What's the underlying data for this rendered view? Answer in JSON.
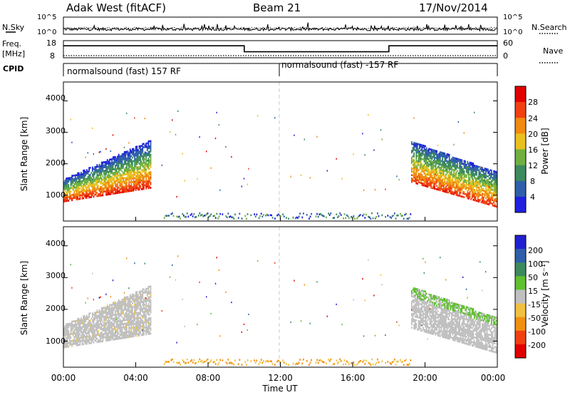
{
  "header": {
    "site": "Adak West (fitACF)",
    "beam": "Beam 21",
    "date": "17/Nov/2014"
  },
  "noise_panel": {
    "left_label": "N.Sky",
    "right_label": "N.Search",
    "left_ticks": [
      "10^5",
      "10^0"
    ],
    "right_ticks": [
      "10^5",
      "10^0"
    ]
  },
  "freq_panel": {
    "left_label_1": "Freq.",
    "left_label_2": "[MHz]",
    "right_label": "Nave",
    "left_ticks": [
      "18",
      "8"
    ],
    "right_ticks": [
      "60",
      "0"
    ]
  },
  "cpid_panel": {
    "label": "CPID",
    "segments": [
      "normalsound (fast) 157 RF",
      "normalsound (fast) -157 RF"
    ]
  },
  "power_panel": {
    "ylabel": "Slant Range [km]",
    "yticks": [
      "4000",
      "3000",
      "2000",
      "1000"
    ],
    "colorbar_label": "Power [dB]",
    "colorbar_ticks": [
      "28",
      "24",
      "20",
      "16",
      "12",
      "8",
      "4"
    ]
  },
  "velocity_panel": {
    "ylabel": "Slant Range [km]",
    "yticks": [
      "4000",
      "3000",
      "2000",
      "1000"
    ],
    "colorbar_label": "Velocity [m s⁻¹]",
    "colorbar_ticks": [
      "200",
      "100",
      "50",
      "15",
      "-15",
      "-50",
      "-100",
      "-200"
    ]
  },
  "x_axis": {
    "ticks": [
      "00:00",
      "04:00",
      "08:00",
      "12:00",
      "16:00",
      "20:00",
      "00:00"
    ],
    "label": "Time UT"
  },
  "colors": {
    "power_scale": [
      "#2020e0",
      "#2f5faa",
      "#3d8a5e",
      "#6fb040",
      "#e8c020",
      "#f08a10",
      "#f04010",
      "#e00000"
    ],
    "velocity_scale": [
      "#e00000",
      "#f04010",
      "#f09010",
      "#f0c040",
      "#c0c0c0",
      "#60c030",
      "#3d8a5e",
      "#2f5faa",
      "#2020d0"
    ]
  },
  "chart_data": [
    {
      "type": "line",
      "title": "N.Sky / N.Search",
      "x": [
        0,
        4,
        8,
        12,
        16,
        20,
        24
      ],
      "series": [
        {
          "name": "N.Sky",
          "values": [
            10,
            10,
            10,
            10,
            10,
            10,
            10
          ]
        }
      ],
      "xlim": [
        0,
        24
      ],
      "ylim": [
        0,
        100000
      ],
      "yscale": "log"
    },
    {
      "type": "line",
      "title": "Freq. [MHz] / Nave",
      "x": [
        0,
        10,
        10,
        18,
        18,
        24
      ],
      "series": [
        {
          "name": "Freq.",
          "values": [
            15,
            15,
            11.5,
            11.5,
            15,
            15
          ]
        },
        {
          "name": "Nave",
          "values": [
            4,
            4,
            4,
            4,
            4,
            4
          ]
        }
      ],
      "xlim": [
        0,
        24
      ],
      "ylim": [
        8,
        18
      ]
    },
    {
      "type": "heatmap",
      "title": "Power [dB]",
      "xlabel": "Time UT",
      "ylabel": "Slant Range [km]",
      "xlim": [
        0,
        24
      ],
      "ylim": [
        180,
        4600
      ],
      "features": [
        {
          "name": "dawn echo band",
          "t_start": 0,
          "t_end": 4.8,
          "range_min": 800,
          "range_max": 2600,
          "peak_power_dB": 30
        },
        {
          "name": "dusk echo band",
          "t_start": 19.2,
          "t_end": 24,
          "range_min": 600,
          "range_max": 2800,
          "peak_power_dB": 30
        },
        {
          "name": "near-range ground scatter",
          "t_start": 6,
          "t_end": 19,
          "range_min": 200,
          "range_max": 400,
          "peak_power_dB": 12
        }
      ]
    },
    {
      "type": "heatmap",
      "title": "Velocity [m s⁻¹]",
      "xlabel": "Time UT",
      "ylabel": "Slant Range [km]",
      "xlim": [
        0,
        24
      ],
      "ylim": [
        180,
        4600
      ],
      "features": [
        {
          "name": "dawn ground scatter",
          "t_start": 0,
          "t_end": 4.8,
          "range_min": 800,
          "range_max": 2600,
          "velocity_ms": 0
        },
        {
          "name": "dusk ground scatter",
          "t_start": 19.2,
          "t_end": 24,
          "range_min": 600,
          "range_max": 2800,
          "velocity_ms": 0
        },
        {
          "name": "near-range scatter",
          "t_start": 6,
          "t_end": 19,
          "range_min": 200,
          "range_max": 400,
          "velocity_ms": -50
        }
      ]
    }
  ]
}
